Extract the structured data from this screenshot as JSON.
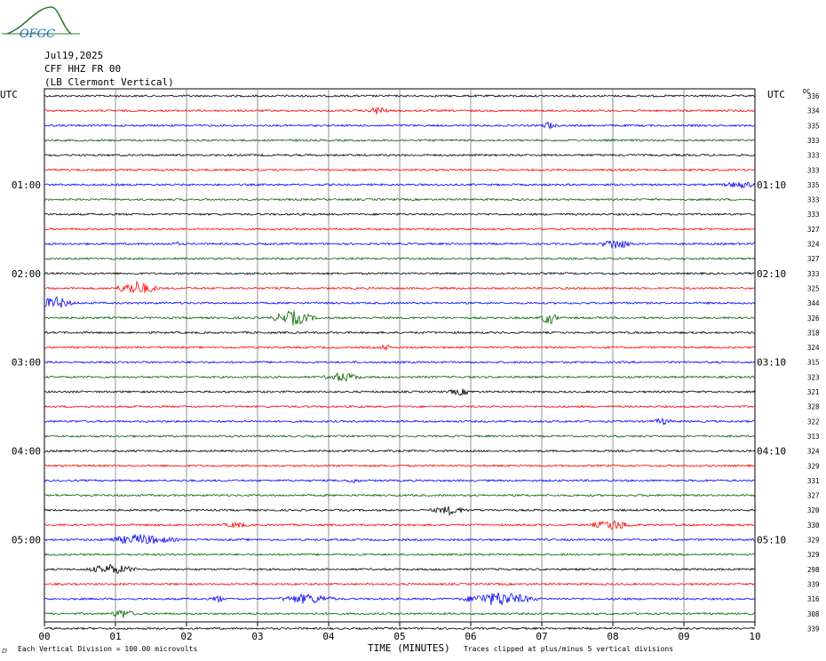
{
  "header": {
    "logo_text": "OFGC",
    "date": "Jul19,2025",
    "station": "CFF HHZ FR 00",
    "location": "(LB  Clermont Vertical)"
  },
  "chart_data": {
    "type": "line",
    "title": "Jul19,2025",
    "xlabel": "TIME (MINUTES)",
    "ylabel_left": "UTC",
    "ylabel_right": "UTC",
    "dc_label": "DC",
    "x_ticks": [
      "00",
      "01",
      "02",
      "03",
      "04",
      "05",
      "06",
      "07",
      "08",
      "09",
      "10"
    ],
    "xlim": [
      0,
      10
    ],
    "left_time_labels": [
      "01:00",
      "02:00",
      "03:00",
      "04:00",
      "05:00"
    ],
    "right_time_labels": [
      "01:10",
      "02:10",
      "03:10",
      "04:10",
      "05:10"
    ],
    "time_label_rows": [
      6,
      12,
      18,
      24,
      30
    ],
    "trace_colors": [
      "#000000",
      "#ff0000",
      "#0000ff",
      "#006400"
    ],
    "dc_offsets": [
      336,
      334,
      335,
      333,
      333,
      333,
      335,
      333,
      333,
      327,
      324,
      327,
      333,
      325,
      344,
      326,
      318,
      324,
      315,
      323,
      321,
      328,
      322,
      313,
      324,
      329,
      331,
      327,
      320,
      330,
      329,
      329,
      298,
      339,
      316,
      308,
      339
    ],
    "events": [
      {
        "trace": 1,
        "minute": 4.7,
        "amp": 1.8,
        "width": 0.15
      },
      {
        "trace": 2,
        "minute": 7.1,
        "amp": 1.6,
        "width": 0.1
      },
      {
        "trace": 6,
        "minute": 9.8,
        "amp": 1.2,
        "width": 0.3
      },
      {
        "trace": 10,
        "minute": 8.05,
        "amp": 2.2,
        "width": 0.25
      },
      {
        "trace": 10,
        "minute": 1.85,
        "amp": 1.2,
        "width": 0.05
      },
      {
        "trace": 13,
        "minute": 1.3,
        "amp": 2.8,
        "width": 0.35
      },
      {
        "trace": 14,
        "minute": 0.15,
        "amp": 2.5,
        "width": 0.3
      },
      {
        "trace": 15,
        "minute": 3.5,
        "amp": 3.0,
        "width": 0.35
      },
      {
        "trace": 15,
        "minute": 7.1,
        "amp": 2.8,
        "width": 0.15
      },
      {
        "trace": 17,
        "minute": 4.8,
        "amp": 1.2,
        "width": 0.08
      },
      {
        "trace": 19,
        "minute": 4.2,
        "amp": 1.8,
        "width": 0.3
      },
      {
        "trace": 20,
        "minute": 5.85,
        "amp": 1.2,
        "width": 0.2
      },
      {
        "trace": 22,
        "minute": 8.7,
        "amp": 1.2,
        "width": 0.15
      },
      {
        "trace": 26,
        "minute": 4.35,
        "amp": 1.0,
        "width": 0.1
      },
      {
        "trace": 28,
        "minute": 5.7,
        "amp": 1.6,
        "width": 0.3
      },
      {
        "trace": 29,
        "minute": 8.0,
        "amp": 2.0,
        "width": 0.35
      },
      {
        "trace": 29,
        "minute": 2.7,
        "amp": 1.0,
        "width": 0.2
      },
      {
        "trace": 30,
        "minute": 1.35,
        "amp": 2.0,
        "width": 0.6
      },
      {
        "trace": 32,
        "minute": 0.95,
        "amp": 2.0,
        "width": 0.4
      },
      {
        "trace": 34,
        "minute": 3.7,
        "amp": 2.0,
        "width": 0.45
      },
      {
        "trace": 34,
        "minute": 6.4,
        "amp": 2.8,
        "width": 0.6
      },
      {
        "trace": 34,
        "minute": 2.45,
        "amp": 1.5,
        "width": 0.1
      },
      {
        "trace": 35,
        "minute": 1.1,
        "amp": 1.8,
        "width": 0.2
      }
    ]
  },
  "footer": {
    "division_note": "Each Vertical Division =  100.00 microvolts",
    "clip_note": "Traces clipped at plus/minus 5 vertical divisions",
    "corner_mark": "ⅅ"
  }
}
